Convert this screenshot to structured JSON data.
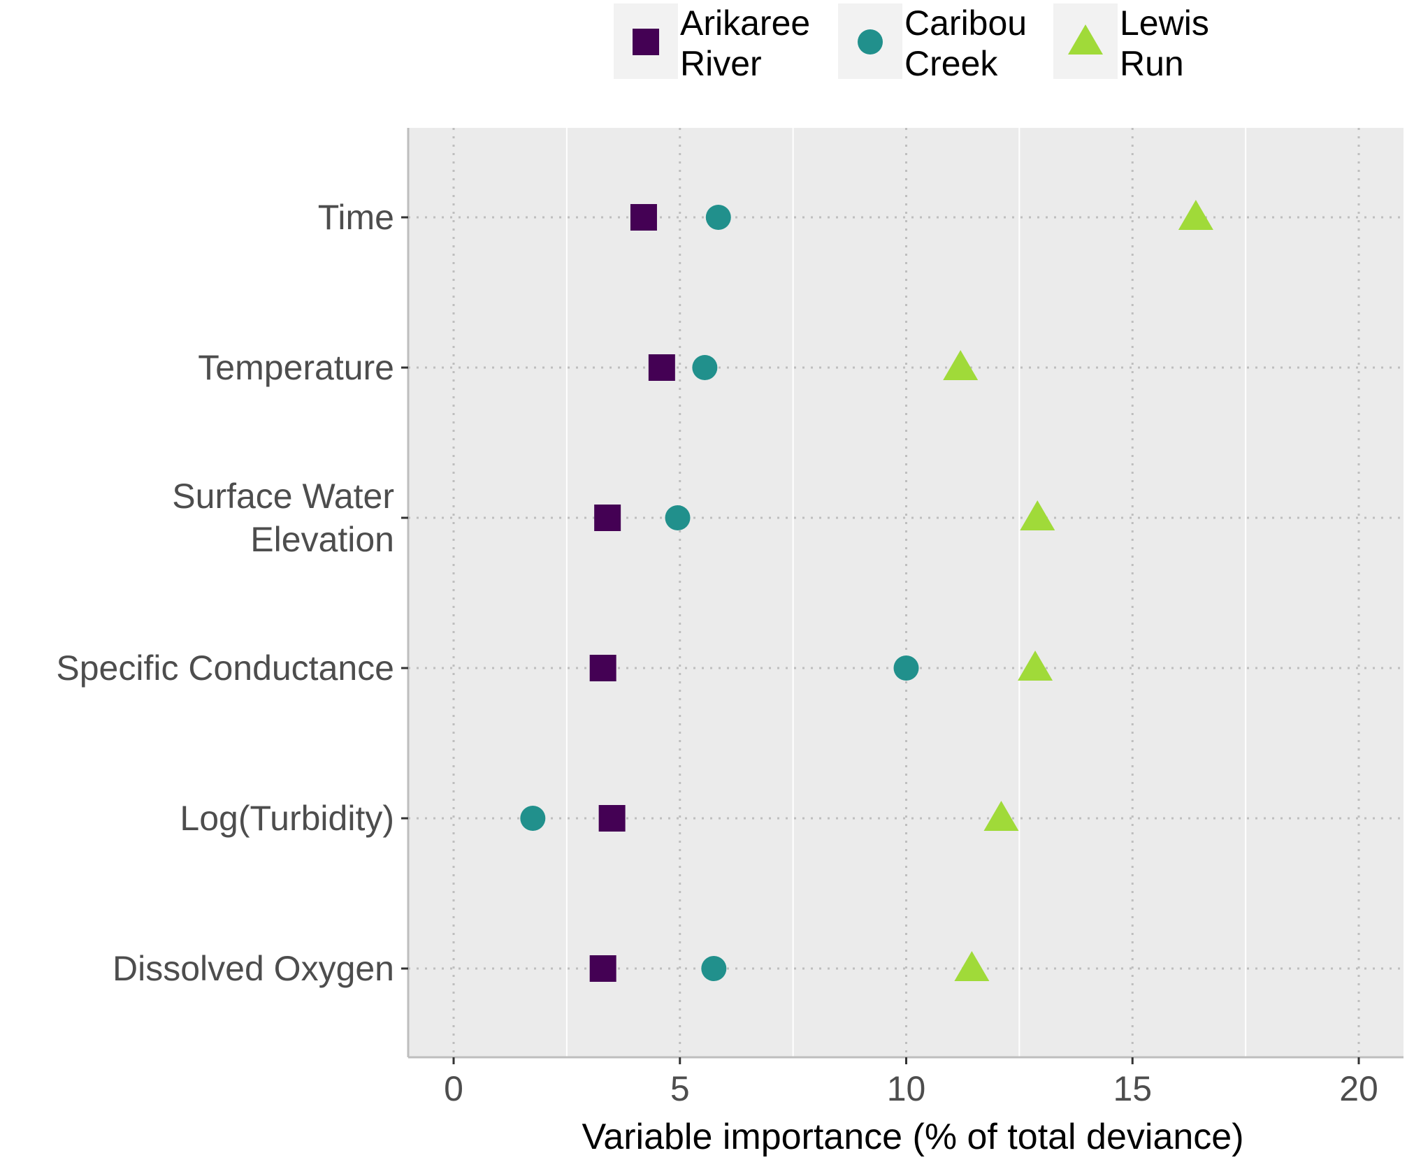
{
  "chart_data": {
    "type": "scatter",
    "title": "",
    "xlabel": "Variable importance (% of total deviance)",
    "ylabel": "",
    "xlim": [
      -1.0,
      21.0
    ],
    "x_ticks": [
      0,
      5,
      10,
      15,
      20
    ],
    "x_tick_labels": [
      "0",
      "5",
      "10",
      "15",
      "20"
    ],
    "grid": true,
    "legend_position": "top",
    "categories": [
      [
        "Time"
      ],
      [
        "Temperature"
      ],
      [
        "Surface Water",
        "Elevation"
      ],
      [
        "Specific Conductance"
      ],
      [
        "Log(Turbidity)"
      ],
      [
        "Dissolved Oxygen"
      ]
    ],
    "series": [
      {
        "name": [
          "Arikaree",
          "River"
        ],
        "shape": "square",
        "color": "#440154",
        "values": [
          4.2,
          4.6,
          3.4,
          3.3,
          3.5,
          3.3
        ]
      },
      {
        "name": [
          "Caribou",
          "Creek"
        ],
        "shape": "circle",
        "color": "#21908C",
        "values": [
          5.85,
          5.55,
          4.95,
          10.0,
          1.75,
          5.75
        ]
      },
      {
        "name": [
          "Lewis",
          "Run"
        ],
        "shape": "triangle",
        "color": "#A0DA39",
        "values": [
          16.4,
          11.2,
          12.9,
          12.85,
          12.1,
          11.45
        ]
      }
    ],
    "colors": {
      "panel_bg": "#EBEBEB",
      "grid_major": "#FFFFFF",
      "grid_dotted": "#BEBEBE",
      "axis_line": "#BEBEBE",
      "legend_key_bg": "#F2F2F2"
    }
  }
}
